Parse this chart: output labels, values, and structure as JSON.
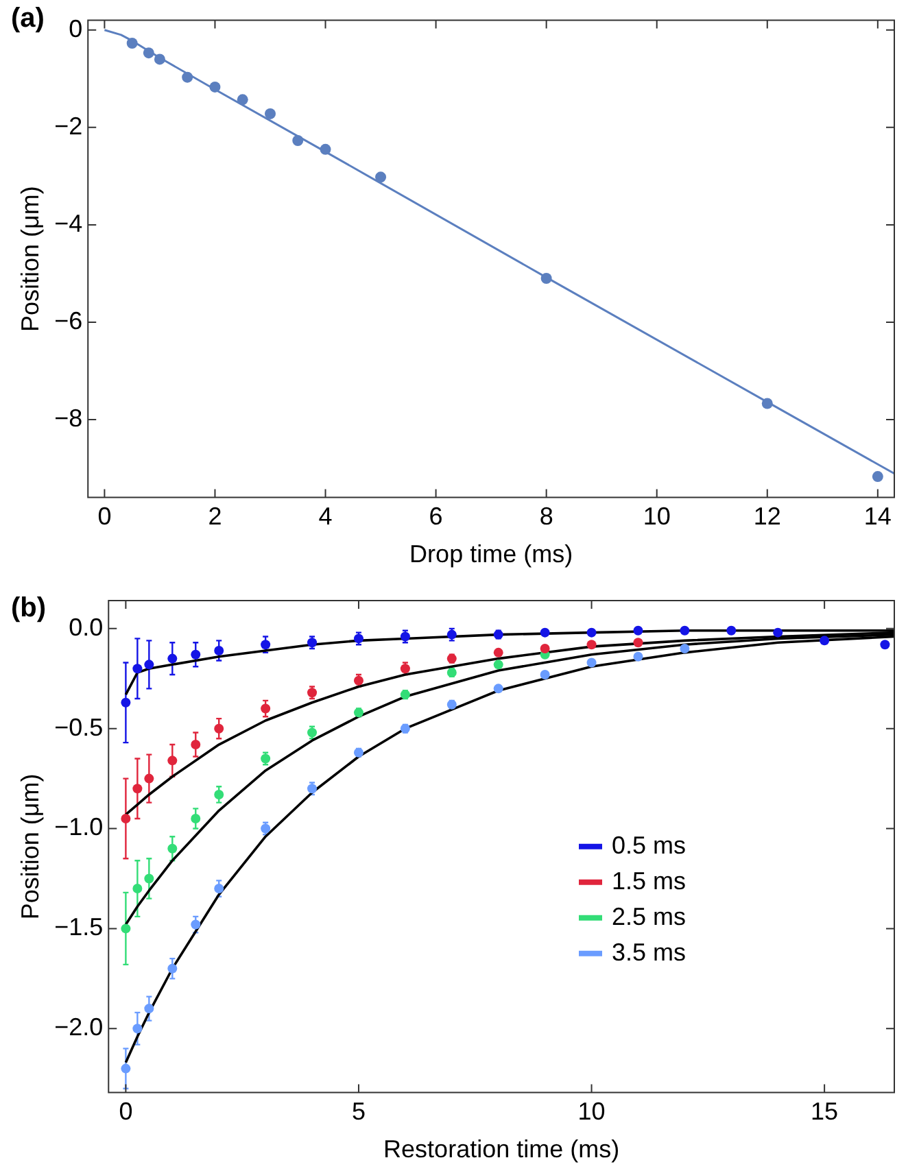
{
  "chart_data": [
    {
      "type": "scatter",
      "title": "(a)",
      "xlabel": "Drop time (ms)",
      "ylabel": "Position (μm)",
      "xlim": [
        -0.3,
        14.3
      ],
      "ylim": [
        -9.6,
        0.2
      ],
      "xticks": [
        0,
        2,
        4,
        6,
        8,
        10,
        12,
        14
      ],
      "yticks": [
        {
          "value": 0,
          "label": "0"
        },
        {
          "value": -2,
          "label": "−2"
        },
        {
          "value": -4,
          "label": "−4"
        },
        {
          "value": -6,
          "label": "−6"
        },
        {
          "value": -8,
          "label": "−8"
        }
      ],
      "grid": false,
      "legend": false,
      "marker": "circle",
      "series": [
        {
          "color": "#5b7fbf",
          "x": [
            0.5,
            0.8,
            1,
            1.5,
            2,
            2.5,
            3,
            3.5,
            4,
            5,
            8,
            12,
            14
          ],
          "values": [
            -0.27,
            -0.47,
            -0.6,
            -0.97,
            -1.17,
            -1.43,
            -1.72,
            -2.27,
            -2.45,
            -3.02,
            -5.1,
            -7.67,
            -9.17
          ]
        },
        {
          "type": "line",
          "marker": "none",
          "color": "#5b7fbf",
          "x": [
            0,
            0.3,
            0.5,
            1,
            2,
            4,
            8,
            12,
            14.3
          ],
          "values": [
            0,
            -0.1,
            -0.22,
            -0.57,
            -1.22,
            -2.5,
            -5.08,
            -7.64,
            -9.11
          ]
        }
      ]
    },
    {
      "type": "scatter",
      "title": "(b)",
      "xlabel": "Restoration time (ms)",
      "ylabel": "Position (μm)",
      "xlim": [
        -0.37,
        16.5
      ],
      "ylim": [
        -2.32,
        0.14
      ],
      "xticks": [
        0,
        5,
        10,
        15
      ],
      "yticks": [
        {
          "value": 0,
          "label": "0.0"
        },
        {
          "value": -0.5,
          "label": "−0.5"
        },
        {
          "value": -1,
          "label": "−1.0"
        },
        {
          "value": -1.5,
          "label": "−1.5"
        },
        {
          "value": -2,
          "label": "−2.0"
        }
      ],
      "grid": false,
      "legend": "right",
      "marker": "circle",
      "series": [
        {
          "name": "0.5 ms",
          "color": "#1414e6",
          "x": [
            0,
            0.25,
            0.5,
            1,
            1.5,
            2,
            3,
            4,
            5,
            6,
            7,
            8,
            9,
            10,
            11,
            12,
            13,
            14,
            15,
            16.3
          ],
          "values": [
            -0.37,
            -0.2,
            -0.18,
            -0.15,
            -0.13,
            -0.11,
            -0.08,
            -0.07,
            -0.05,
            -0.04,
            -0.03,
            -0.03,
            -0.02,
            -0.02,
            -0.01,
            -0.01,
            -0.01,
            -0.02,
            -0.06,
            -0.08
          ],
          "errors": [
            0.2,
            0.15,
            0.12,
            0.08,
            0.06,
            0.05,
            0.04,
            0.03,
            0.03,
            0.03,
            0.03,
            0.02,
            null,
            null,
            null,
            null,
            null,
            null,
            null,
            null
          ]
        },
        {
          "name": "1.5 ms",
          "color": "#e0253c",
          "x": [
            0,
            0.25,
            0.5,
            1,
            1.5,
            2,
            3,
            4,
            5,
            6,
            7,
            8,
            9,
            10,
            11
          ],
          "values": [
            -0.95,
            -0.8,
            -0.75,
            -0.66,
            -0.58,
            -0.5,
            -0.4,
            -0.32,
            -0.26,
            -0.2,
            -0.15,
            -0.12,
            -0.1,
            -0.08,
            -0.07
          ],
          "errors": [
            0.2,
            0.15,
            0.12,
            0.08,
            0.06,
            0.05,
            0.04,
            0.03,
            0.03,
            0.03,
            0.02,
            null,
            null,
            null,
            null
          ]
        },
        {
          "name": "2.5 ms",
          "color": "#33dd77",
          "x": [
            0,
            0.25,
            0.5,
            1,
            1.5,
            2,
            3,
            4,
            5,
            6,
            7,
            8,
            9
          ],
          "values": [
            -1.5,
            -1.3,
            -1.25,
            -1.1,
            -0.95,
            -0.83,
            -0.65,
            -0.52,
            -0.42,
            -0.33,
            -0.22,
            -0.18,
            -0.13
          ],
          "errors": [
            0.18,
            0.14,
            0.1,
            0.06,
            0.05,
            0.04,
            0.03,
            0.03,
            0.02,
            0.02,
            0.02,
            null,
            null
          ]
        },
        {
          "name": "3.5 ms",
          "color": "#6a9cff",
          "x": [
            0,
            0.25,
            0.5,
            1,
            1.5,
            2,
            3,
            4,
            5,
            6,
            7,
            8,
            9,
            10,
            11,
            12
          ],
          "values": [
            -2.2,
            -2.0,
            -1.9,
            -1.7,
            -1.48,
            -1.3,
            -1.0,
            -0.8,
            -0.62,
            -0.5,
            -0.38,
            -0.3,
            -0.23,
            -0.17,
            -0.14,
            -0.1
          ],
          "errors": [
            0.1,
            0.08,
            0.06,
            0.05,
            0.04,
            0.04,
            0.03,
            0.03,
            0.02,
            0.02,
            0.02,
            null,
            null,
            null,
            null,
            null
          ]
        },
        {
          "type": "line",
          "marker": "none",
          "color": "#000000",
          "x": [
            0,
            0.25,
            0.5,
            1,
            2,
            3,
            4,
            5,
            6,
            8,
            10,
            12,
            14,
            16.5
          ],
          "values": [
            -0.33,
            -0.22,
            -0.2,
            -0.18,
            -0.14,
            -0.11,
            -0.08,
            -0.06,
            -0.05,
            -0.03,
            -0.02,
            -0.01,
            -0.01,
            -0.01
          ]
        },
        {
          "type": "line",
          "marker": "none",
          "color": "#000000",
          "x": [
            0,
            0.25,
            0.5,
            1,
            2,
            3,
            4,
            5,
            6,
            8,
            10,
            12,
            14,
            16.5
          ],
          "values": [
            -0.93,
            -0.88,
            -0.83,
            -0.74,
            -0.58,
            -0.46,
            -0.37,
            -0.29,
            -0.23,
            -0.15,
            -0.09,
            -0.06,
            -0.04,
            -0.02
          ]
        },
        {
          "type": "line",
          "marker": "none",
          "color": "#000000",
          "x": [
            0,
            0.25,
            0.5,
            1,
            2,
            3,
            4,
            5,
            6,
            8,
            10,
            12,
            14,
            16.5
          ],
          "values": [
            -1.48,
            -1.39,
            -1.31,
            -1.16,
            -0.91,
            -0.71,
            -0.56,
            -0.44,
            -0.34,
            -0.21,
            -0.13,
            -0.08,
            -0.05,
            -0.03
          ]
        },
        {
          "type": "line",
          "marker": "none",
          "color": "#000000",
          "x": [
            0,
            0.25,
            0.5,
            1,
            2,
            3,
            4,
            5,
            6,
            8,
            10,
            12,
            14,
            16.5
          ],
          "values": [
            -2.17,
            -2.04,
            -1.92,
            -1.7,
            -1.33,
            -1.04,
            -0.82,
            -0.64,
            -0.5,
            -0.31,
            -0.19,
            -0.12,
            -0.07,
            -0.04
          ]
        }
      ]
    }
  ]
}
